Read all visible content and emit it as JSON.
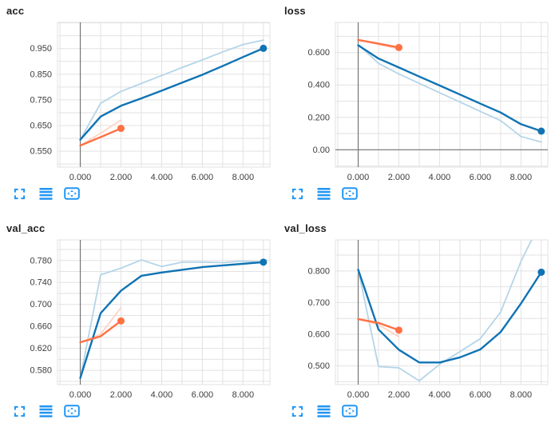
{
  "colors": {
    "run_blue": "#0f73b4",
    "run_blue_raw": "#b5d5e9",
    "run_orange": "#ff7043",
    "run_orange_raw": "#ffd4c6",
    "icon_blue": "#2196f3",
    "grid": "#e2e2e2",
    "axis": "#757575",
    "tick_text": "#3d3d3d",
    "title_text": "#212121"
  },
  "toolbar": {
    "icons": [
      "expand-icon",
      "log-scale-icon",
      "fit-domain-icon"
    ]
  },
  "chart_data": [
    {
      "id": "acc",
      "title": "acc",
      "type": "line",
      "xlabel": "",
      "ylabel": "",
      "legend": "none",
      "grid": true,
      "xlim": [
        -1.12,
        9.32
      ],
      "ylim": [
        0.488,
        1.052
      ],
      "xgrid_step": 1,
      "ygrid_step": 0.05,
      "zero_y_axis": false,
      "xticks": [
        {
          "v": 0,
          "label": "0.000"
        },
        {
          "v": 2,
          "label": "2.000"
        },
        {
          "v": 4,
          "label": "4.000"
        },
        {
          "v": 6,
          "label": "6.000"
        },
        {
          "v": 8,
          "label": "8.000"
        }
      ],
      "yticks": [
        {
          "v": 0.55,
          "label": "0.550"
        },
        {
          "v": 0.65,
          "label": "0.650"
        },
        {
          "v": 0.75,
          "label": "0.750"
        },
        {
          "v": 0.85,
          "label": "0.850"
        },
        {
          "v": 0.95,
          "label": "0.950"
        }
      ],
      "series": [
        {
          "name": "run-blue-raw",
          "color": "#b5d5e9",
          "width": 1.8,
          "x": [
            0,
            1,
            2,
            3,
            4,
            5,
            6,
            7,
            8,
            9
          ],
          "y": [
            0.595,
            0.737,
            0.783,
            0.814,
            0.845,
            0.876,
            0.906,
            0.937,
            0.966,
            0.983
          ]
        },
        {
          "name": "run-orange-raw",
          "color": "#ffd4c6",
          "width": 1.8,
          "x": [
            0,
            1,
            2
          ],
          "y": [
            0.572,
            0.62,
            0.672
          ]
        },
        {
          "name": "run-blue-smoothed",
          "color": "#0f73b4",
          "width": 2.4,
          "x": [
            0,
            1,
            2,
            3,
            4,
            5,
            6,
            7,
            8,
            9
          ],
          "y": [
            0.595,
            0.685,
            0.727,
            0.756,
            0.786,
            0.817,
            0.848,
            0.882,
            0.917,
            0.951
          ]
        },
        {
          "name": "run-orange-smoothed",
          "color": "#ff7043",
          "width": 2.4,
          "x": [
            0,
            1,
            2
          ],
          "y": [
            0.572,
            0.605,
            0.639
          ]
        }
      ],
      "dots": [
        {
          "x": 9,
          "y": 0.951,
          "color": "#0f73b4"
        },
        {
          "x": 2,
          "y": 0.639,
          "color": "#ff7043"
        }
      ]
    },
    {
      "id": "loss",
      "title": "loss",
      "type": "line",
      "xlabel": "",
      "ylabel": "",
      "legend": "none",
      "grid": true,
      "xlim": [
        -1.12,
        9.32
      ],
      "ylim": [
        -0.107,
        0.786
      ],
      "xgrid_step": 1,
      "ygrid_step": 0.1,
      "zero_y_axis": true,
      "xticks": [
        {
          "v": 0,
          "label": "0.000"
        },
        {
          "v": 2,
          "label": "2.000"
        },
        {
          "v": 4,
          "label": "4.000"
        },
        {
          "v": 6,
          "label": "6.000"
        },
        {
          "v": 8,
          "label": "8.000"
        }
      ],
      "yticks": [
        {
          "v": 0,
          "label": "0.00"
        },
        {
          "v": 0.2,
          "label": "0.200"
        },
        {
          "v": 0.4,
          "label": "0.400"
        },
        {
          "v": 0.6,
          "label": "0.600"
        }
      ],
      "series": [
        {
          "name": "run-blue-raw",
          "color": "#b5d5e9",
          "width": 1.8,
          "x": [
            0,
            1,
            2,
            3,
            4,
            5,
            6,
            7,
            8,
            9
          ],
          "y": [
            0.65,
            0.533,
            0.468,
            0.41,
            0.352,
            0.295,
            0.237,
            0.18,
            0.082,
            0.048
          ]
        },
        {
          "name": "run-orange-raw",
          "color": "#ffd4c6",
          "width": 1.8,
          "x": [
            0,
            1,
            2
          ],
          "y": [
            0.68,
            0.65,
            0.622
          ]
        },
        {
          "name": "run-blue-smoothed",
          "color": "#0f73b4",
          "width": 2.4,
          "x": [
            0,
            1,
            2,
            3,
            4,
            5,
            6,
            7,
            8,
            9
          ],
          "y": [
            0.645,
            0.563,
            0.508,
            0.452,
            0.397,
            0.341,
            0.285,
            0.23,
            0.158,
            0.115
          ]
        },
        {
          "name": "run-orange-smoothed",
          "color": "#ff7043",
          "width": 2.4,
          "x": [
            0,
            1,
            2
          ],
          "y": [
            0.678,
            0.655,
            0.631
          ]
        }
      ],
      "dots": [
        {
          "x": 9,
          "y": 0.115,
          "color": "#0f73b4"
        },
        {
          "x": 2,
          "y": 0.631,
          "color": "#ff7043"
        }
      ]
    },
    {
      "id": "val_acc",
      "title": "val_acc",
      "type": "line",
      "xlabel": "",
      "ylabel": "",
      "legend": "none",
      "grid": true,
      "xlim": [
        -1.12,
        9.32
      ],
      "ylim": [
        0.554,
        0.8175
      ],
      "xgrid_step": 1,
      "ygrid_step": 0.02,
      "zero_y_axis": false,
      "xticks": [
        {
          "v": 0,
          "label": "0.000"
        },
        {
          "v": 2,
          "label": "2.000"
        },
        {
          "v": 4,
          "label": "4.000"
        },
        {
          "v": 6,
          "label": "6.000"
        },
        {
          "v": 8,
          "label": "8.000"
        }
      ],
      "yticks": [
        {
          "v": 0.58,
          "label": "0.580"
        },
        {
          "v": 0.62,
          "label": "0.620"
        },
        {
          "v": 0.66,
          "label": "0.660"
        },
        {
          "v": 0.7,
          "label": "0.700"
        },
        {
          "v": 0.74,
          "label": "0.740"
        },
        {
          "v": 0.78,
          "label": "0.780"
        }
      ],
      "series": [
        {
          "name": "run-blue-raw",
          "color": "#b5d5e9",
          "width": 1.8,
          "x": [
            0,
            1,
            2,
            3,
            4,
            5,
            6,
            7,
            8,
            9
          ],
          "y": [
            0.566,
            0.754,
            0.766,
            0.781,
            0.769,
            0.777,
            0.777,
            0.776,
            0.779,
            0.777
          ]
        },
        {
          "name": "run-orange-raw",
          "color": "#ffd4c6",
          "width": 1.8,
          "x": [
            0,
            1,
            2
          ],
          "y": [
            0.631,
            0.646,
            0.694
          ]
        },
        {
          "name": "run-blue-smoothed",
          "color": "#0f73b4",
          "width": 2.4,
          "x": [
            0,
            1,
            2,
            3,
            4,
            5,
            6,
            7,
            8,
            9
          ],
          "y": [
            0.566,
            0.684,
            0.725,
            0.752,
            0.758,
            0.763,
            0.768,
            0.771,
            0.774,
            0.777
          ]
        },
        {
          "name": "run-orange-smoothed",
          "color": "#ff7043",
          "width": 2.4,
          "x": [
            0,
            1,
            2
          ],
          "y": [
            0.631,
            0.642,
            0.67
          ]
        }
      ],
      "dots": [
        {
          "x": 9,
          "y": 0.777,
          "color": "#0f73b4"
        },
        {
          "x": 2,
          "y": 0.67,
          "color": "#ff7043"
        }
      ]
    },
    {
      "id": "val_loss",
      "title": "val_loss",
      "type": "line",
      "xlabel": "",
      "ylabel": "",
      "legend": "none",
      "grid": true,
      "xlim": [
        -1.12,
        9.32
      ],
      "ylim": [
        0.441,
        0.898
      ],
      "xgrid_step": 1,
      "ygrid_step": 0.05,
      "zero_y_axis": false,
      "xticks": [
        {
          "v": 0,
          "label": "0.000"
        },
        {
          "v": 2,
          "label": "2.000"
        },
        {
          "v": 4,
          "label": "4.000"
        },
        {
          "v": 6,
          "label": "6.000"
        },
        {
          "v": 8,
          "label": "8.000"
        }
      ],
      "yticks": [
        {
          "v": 0.5,
          "label": "0.500"
        },
        {
          "v": 0.6,
          "label": "0.600"
        },
        {
          "v": 0.7,
          "label": "0.700"
        },
        {
          "v": 0.8,
          "label": "0.800"
        }
      ],
      "series": [
        {
          "name": "run-blue-raw",
          "color": "#b5d5e9",
          "width": 1.8,
          "x": [
            0,
            1,
            2,
            3,
            4,
            5,
            6,
            7,
            8,
            9
          ],
          "y": [
            0.804,
            0.498,
            0.494,
            0.453,
            0.505,
            0.545,
            0.586,
            0.67,
            0.83,
            0.96
          ]
        },
        {
          "name": "run-orange-raw",
          "color": "#ffd4c6",
          "width": 1.8,
          "x": [
            0,
            1,
            2
          ],
          "y": [
            0.648,
            0.63,
            0.592
          ]
        },
        {
          "name": "run-blue-smoothed",
          "color": "#0f73b4",
          "width": 2.4,
          "x": [
            0,
            1,
            2,
            3,
            4,
            5,
            6,
            7,
            8,
            9
          ],
          "y": [
            0.804,
            0.615,
            0.551,
            0.511,
            0.511,
            0.527,
            0.552,
            0.607,
            0.697,
            0.796
          ]
        },
        {
          "name": "run-orange-smoothed",
          "color": "#ff7043",
          "width": 2.4,
          "x": [
            0,
            1,
            2
          ],
          "y": [
            0.648,
            0.636,
            0.613
          ]
        }
      ],
      "dots": [
        {
          "x": 9,
          "y": 0.796,
          "color": "#0f73b4"
        },
        {
          "x": 2,
          "y": 0.613,
          "color": "#ff7043"
        }
      ]
    }
  ]
}
